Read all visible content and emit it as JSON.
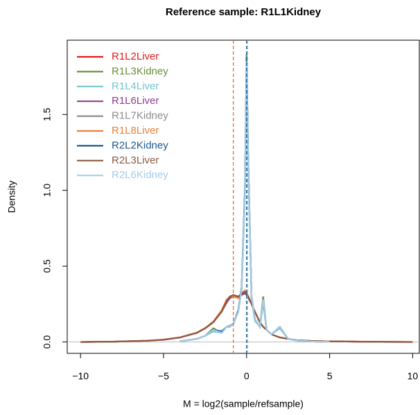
{
  "chart_data": {
    "type": "line",
    "title": "Reference sample: R1L1Kidney",
    "x_label": "M = log2(sample/refsample)",
    "y_label": "Density",
    "xlim": [
      -10.8,
      10.4
    ],
    "ylim": [
      -0.075,
      1.99
    ],
    "xticks": [
      {
        "value": -10,
        "label": "−10"
      },
      {
        "value": -5,
        "label": "−5"
      },
      0,
      5,
      10
    ],
    "yticks": [
      {
        "value": 0,
        "label": "0.0"
      },
      0.5,
      {
        "value": 1,
        "label": "1.0"
      },
      1.5
    ],
    "legend": "top-left",
    "x": [
      -10,
      -8,
      -6,
      -5,
      -4,
      -3,
      -2.5,
      -2,
      -1.5,
      -1.2,
      -1,
      -0.8,
      -0.5,
      -0.3,
      -0.1,
      0,
      0.1,
      0.3,
      0.5,
      0.8,
      1,
      1.2,
      1.5,
      2,
      2.5,
      3,
      4,
      5,
      6,
      8,
      10
    ],
    "vlines": [
      {
        "x": -0.8,
        "color": "#e2712f"
      },
      {
        "x": 0,
        "color": "#1d5a8e"
      },
      {
        "x": 0.05,
        "color": "#6fb0d6"
      }
    ],
    "series": [
      {
        "name": "R1L2Liver",
        "color": "#e41a1c",
        "values": [
          0,
          0.002,
          0.008,
          0.015,
          0.03,
          0.06,
          0.09,
          0.13,
          0.2,
          0.27,
          0.3,
          0.3,
          0.29,
          0.32,
          0.33,
          0.32,
          0.3,
          0.25,
          0.2,
          0.13,
          0.1,
          0.08,
          0.05,
          0.03,
          0.02,
          0.012,
          0.006,
          0.004,
          0.003,
          0.001,
          0
        ]
      },
      {
        "name": "R1L3Kidney",
        "color": "#6a8f3a",
        "values": [
          null,
          null,
          null,
          null,
          0.005,
          0.02,
          0.04,
          0.09,
          0.06,
          0.1,
          0.1,
          0.12,
          0.2,
          0.36,
          1.0,
          1.9,
          1.2,
          0.3,
          0.15,
          0.1,
          0.3,
          0.08,
          0.05,
          0.1,
          0.02,
          0.01,
          0.003,
          0.001,
          null,
          null,
          null
        ]
      },
      {
        "name": "R1L4Liver",
        "color": "#71c7cc",
        "values": [
          null,
          null,
          null,
          null,
          0.005,
          0.02,
          0.04,
          0.07,
          0.06,
          0.1,
          0.11,
          0.12,
          0.2,
          0.34,
          0.95,
          1.8,
          1.15,
          0.28,
          0.14,
          0.1,
          0.26,
          0.08,
          0.05,
          0.09,
          0.02,
          0.01,
          0.003,
          0.001,
          null,
          null,
          null
        ]
      },
      {
        "name": "R1L6Liver",
        "color": "#8e3e8e",
        "values": [
          0,
          0.002,
          0.008,
          0.014,
          0.03,
          0.06,
          0.09,
          0.13,
          0.2,
          0.26,
          0.29,
          0.3,
          0.29,
          0.31,
          0.32,
          0.31,
          0.29,
          0.25,
          0.2,
          0.13,
          0.1,
          0.08,
          0.05,
          0.03,
          0.02,
          0.012,
          0.006,
          0.004,
          0.003,
          0.001,
          0
        ]
      },
      {
        "name": "R1L7Kidney",
        "color": "#8c8c8c",
        "values": [
          null,
          null,
          null,
          null,
          0.005,
          0.02,
          0.04,
          0.08,
          0.06,
          0.1,
          0.1,
          0.12,
          0.2,
          0.35,
          1.0,
          1.85,
          1.18,
          0.3,
          0.15,
          0.1,
          0.27,
          0.08,
          0.05,
          0.1,
          0.02,
          0.01,
          0.003,
          0.001,
          null,
          null,
          null
        ]
      },
      {
        "name": "R1L8Liver",
        "color": "#e8803c",
        "values": [
          0,
          0.002,
          0.009,
          0.016,
          0.031,
          0.062,
          0.092,
          0.135,
          0.21,
          0.28,
          0.3,
          0.3,
          0.29,
          0.32,
          0.34,
          0.32,
          0.3,
          0.25,
          0.2,
          0.13,
          0.1,
          0.08,
          0.05,
          0.03,
          0.02,
          0.012,
          0.006,
          0.004,
          0.003,
          0.001,
          0
        ]
      },
      {
        "name": "R2L2Kidney",
        "color": "#1d5a8e",
        "values": [
          null,
          null,
          null,
          null,
          0.005,
          0.02,
          0.04,
          0.08,
          0.07,
          0.1,
          0.1,
          0.12,
          0.21,
          0.36,
          1.02,
          1.88,
          1.2,
          0.3,
          0.15,
          0.1,
          0.28,
          0.08,
          0.05,
          0.1,
          0.02,
          0.01,
          0.003,
          0.001,
          null,
          null,
          null
        ]
      },
      {
        "name": "R2L3Liver",
        "color": "#8c5a3c",
        "values": [
          0,
          0.002,
          0.008,
          0.015,
          0.03,
          0.06,
          0.09,
          0.13,
          0.2,
          0.27,
          0.3,
          0.31,
          0.3,
          0.32,
          0.33,
          0.32,
          0.3,
          0.25,
          0.2,
          0.13,
          0.1,
          0.08,
          0.05,
          0.03,
          0.02,
          0.012,
          0.006,
          0.004,
          0.003,
          0.001,
          0
        ]
      },
      {
        "name": "R2L6Kidney",
        "color": "#a6cce8",
        "values": [
          null,
          null,
          null,
          null,
          0.005,
          0.02,
          0.04,
          0.08,
          0.06,
          0.1,
          0.1,
          0.12,
          0.2,
          0.35,
          0.98,
          1.85,
          1.18,
          0.3,
          0.15,
          0.1,
          0.28,
          0.08,
          0.05,
          0.1,
          0.02,
          0.01,
          0.003,
          0.001,
          null,
          null,
          null
        ]
      }
    ]
  }
}
